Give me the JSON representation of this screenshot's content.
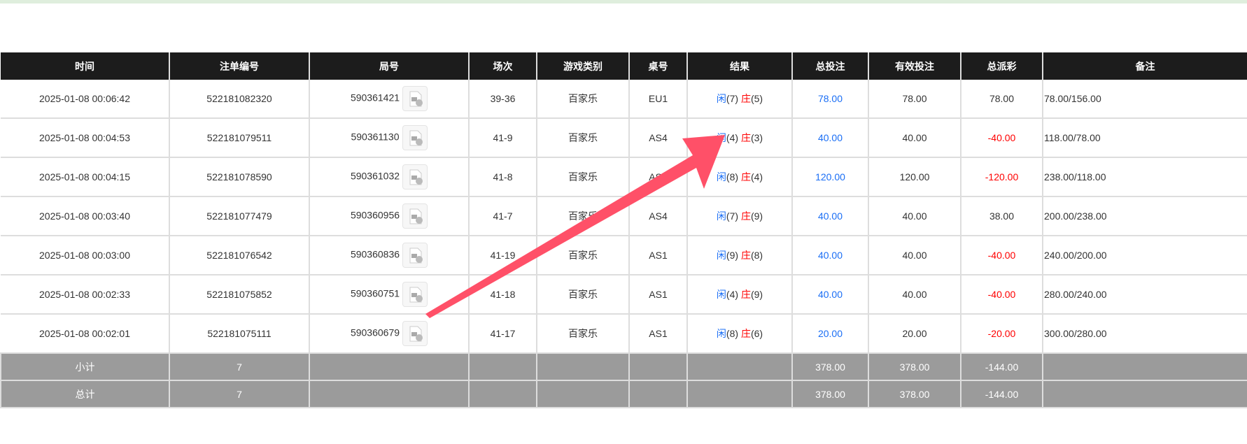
{
  "headers": [
    "时间",
    "注单编号",
    "局号",
    "场次",
    "游戏类别",
    "桌号",
    "结果",
    "总投注",
    "有效投注",
    "总派彩",
    "备注"
  ],
  "rows": [
    {
      "time": "2025-01-08 00:06:42",
      "bet_id": "522181082320",
      "round": "590361421",
      "shoe": "39-36",
      "game": "百家乐",
      "table": "EU1",
      "player": "闲",
      "player_pts": "(7)",
      "banker": "庄",
      "banker_pts": "(5)",
      "total": "78.00",
      "valid": "78.00",
      "payout": "78.00",
      "payout_neg": false,
      "note": "78.00/156.00"
    },
    {
      "time": "2025-01-08 00:04:53",
      "bet_id": "522181079511",
      "round": "590361130",
      "shoe": "41-9",
      "game": "百家乐",
      "table": "AS4",
      "player": "闲",
      "player_pts": "(4)",
      "banker": "庄",
      "banker_pts": "(3)",
      "total": "40.00",
      "valid": "40.00",
      "payout": "-40.00",
      "payout_neg": true,
      "note": "118.00/78.00"
    },
    {
      "time": "2025-01-08 00:04:15",
      "bet_id": "522181078590",
      "round": "590361032",
      "shoe": "41-8",
      "game": "百家乐",
      "table": "AS4",
      "player": "闲",
      "player_pts": "(8)",
      "banker": "庄",
      "banker_pts": "(4)",
      "total": "120.00",
      "valid": "120.00",
      "payout": "-120.00",
      "payout_neg": true,
      "note": "238.00/118.00"
    },
    {
      "time": "2025-01-08 00:03:40",
      "bet_id": "522181077479",
      "round": "590360956",
      "shoe": "41-7",
      "game": "百家乐",
      "table": "AS4",
      "player": "闲",
      "player_pts": "(7)",
      "banker": "庄",
      "banker_pts": "(9)",
      "total": "40.00",
      "valid": "40.00",
      "payout": "38.00",
      "payout_neg": false,
      "note": "200.00/238.00"
    },
    {
      "time": "2025-01-08 00:03:00",
      "bet_id": "522181076542",
      "round": "590360836",
      "shoe": "41-19",
      "game": "百家乐",
      "table": "AS1",
      "player": "闲",
      "player_pts": "(9)",
      "banker": "庄",
      "banker_pts": "(8)",
      "total": "40.00",
      "valid": "40.00",
      "payout": "-40.00",
      "payout_neg": true,
      "note": "240.00/200.00"
    },
    {
      "time": "2025-01-08 00:02:33",
      "bet_id": "522181075852",
      "round": "590360751",
      "shoe": "41-18",
      "game": "百家乐",
      "table": "AS1",
      "player": "闲",
      "player_pts": "(4)",
      "banker": "庄",
      "banker_pts": "(9)",
      "total": "40.00",
      "valid": "40.00",
      "payout": "-40.00",
      "payout_neg": true,
      "note": "280.00/240.00"
    },
    {
      "time": "2025-01-08 00:02:01",
      "bet_id": "522181075111",
      "round": "590360679",
      "shoe": "41-17",
      "game": "百家乐",
      "table": "AS1",
      "player": "闲",
      "player_pts": "(8)",
      "banker": "庄",
      "banker_pts": "(6)",
      "total": "20.00",
      "valid": "20.00",
      "payout": "-20.00",
      "payout_neg": true,
      "note": "300.00/280.00"
    }
  ],
  "subtotal": {
    "label": "小计",
    "count": "7",
    "total": "378.00",
    "valid": "378.00",
    "payout": "-144.00"
  },
  "grandtotal": {
    "label": "总计",
    "count": "7",
    "total": "378.00",
    "valid": "378.00",
    "payout": "-144.00"
  },
  "colors": {
    "header_bg": "#1c1c1c",
    "player": "#1a6ef5",
    "banker": "#ff0000",
    "summary_bg": "#9b9b9b",
    "arrow": "#ff5068"
  },
  "icons": {
    "replay": "video-file-icon"
  }
}
